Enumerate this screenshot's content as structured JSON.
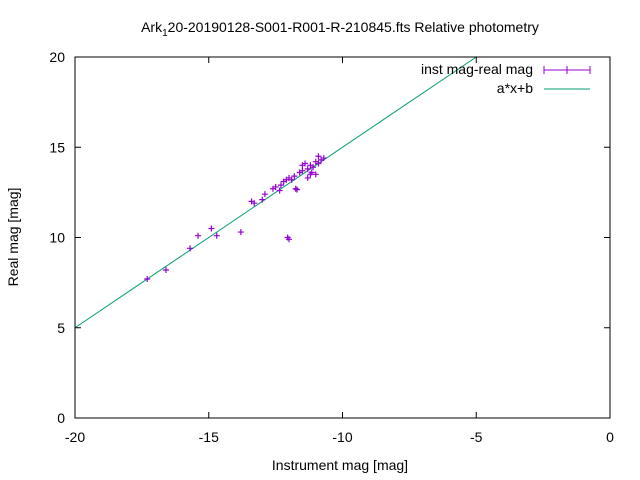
{
  "chart_data": {
    "type": "scatter",
    "title_main": "Ark",
    "title_sub": "1",
    "title_rest": "20-20190128-S001-R001-R-210845.fts Relative photometry",
    "xlabel": "Instrument mag [mag]",
    "ylabel": "Real mag [mag]",
    "xlim": [
      -20,
      0
    ],
    "ylim": [
      0,
      20
    ],
    "xticks": [
      -20,
      -15,
      -10,
      -5,
      0
    ],
    "yticks": [
      0,
      5,
      10,
      15,
      20
    ],
    "grid": false,
    "legend_position": "top-right",
    "series": [
      {
        "name": "inst mag-real mag",
        "style": "points-errorbars",
        "color": "#9400d3",
        "points": [
          [
            -17.3,
            7.7
          ],
          [
            -16.6,
            8.2
          ],
          [
            -15.7,
            9.4
          ],
          [
            -15.4,
            10.1
          ],
          [
            -14.9,
            10.5
          ],
          [
            -14.7,
            10.1
          ],
          [
            -13.8,
            10.3
          ],
          [
            -13.4,
            12.0
          ],
          [
            -13.3,
            11.9
          ],
          [
            -13.0,
            12.1
          ],
          [
            -12.9,
            12.4
          ],
          [
            -12.6,
            12.7
          ],
          [
            -12.5,
            12.8
          ],
          [
            -12.35,
            12.6
          ],
          [
            -12.3,
            12.9
          ],
          [
            -12.2,
            13.1
          ],
          [
            -12.1,
            13.2
          ],
          [
            -12.05,
            10.0
          ],
          [
            -12.0,
            9.9
          ],
          [
            -12.0,
            13.3
          ],
          [
            -11.9,
            13.2
          ],
          [
            -11.8,
            13.4
          ],
          [
            -11.75,
            12.7
          ],
          [
            -11.7,
            12.65
          ],
          [
            -11.6,
            13.6
          ],
          [
            -11.5,
            13.7
          ],
          [
            -11.5,
            14.0
          ],
          [
            -11.4,
            14.1
          ],
          [
            -11.3,
            13.8
          ],
          [
            -11.3,
            13.3
          ],
          [
            -11.2,
            13.5
          ],
          [
            -11.2,
            14.0
          ],
          [
            -11.1,
            13.9
          ],
          [
            -11.0,
            14.2
          ],
          [
            -11.0,
            13.5
          ],
          [
            -10.9,
            14.5
          ],
          [
            -10.9,
            14.1
          ],
          [
            -10.8,
            14.3
          ],
          [
            -10.7,
            14.4
          ],
          [
            -11.15,
            13.6
          ]
        ]
      },
      {
        "name": "a*x+b",
        "style": "line",
        "color": "#009e73",
        "a": 1.0,
        "b": 25.0
      }
    ]
  }
}
